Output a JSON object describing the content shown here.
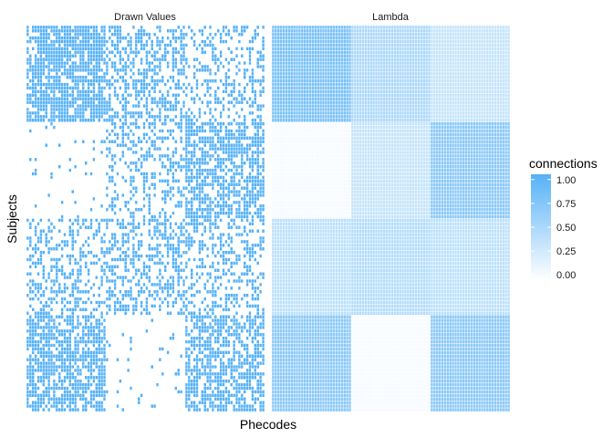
{
  "chart_data": {
    "type": "heatmap",
    "facets": [
      "Drawn Values",
      "Lambda"
    ],
    "xlabel": "Phecodes",
    "ylabel": "Subjects",
    "n_rows": 108,
    "n_cols": 90,
    "row_blocks": [
      27,
      27,
      27,
      27
    ],
    "col_blocks": [
      30,
      30,
      30
    ],
    "lambda_block_values": [
      [
        0.8,
        0.5,
        0.35
      ],
      [
        0.05,
        0.35,
        0.7
      ],
      [
        0.4,
        0.45,
        0.4
      ],
      [
        0.7,
        0.05,
        0.7
      ]
    ],
    "drawn_values": "binary draws (0/1) from Bernoulli(lambda) in each cell; visible as dense or sparse blue speckle per block",
    "legend": {
      "title": "connections",
      "ticks": [
        "0.00",
        "0.25",
        "0.50",
        "0.75",
        "1.00"
      ],
      "tick_values": [
        0,
        0.25,
        0.5,
        0.75,
        1.0
      ],
      "position": "right"
    },
    "colors": {
      "low": "#ffffff",
      "high": "#56b1f7"
    },
    "grid": false
  }
}
